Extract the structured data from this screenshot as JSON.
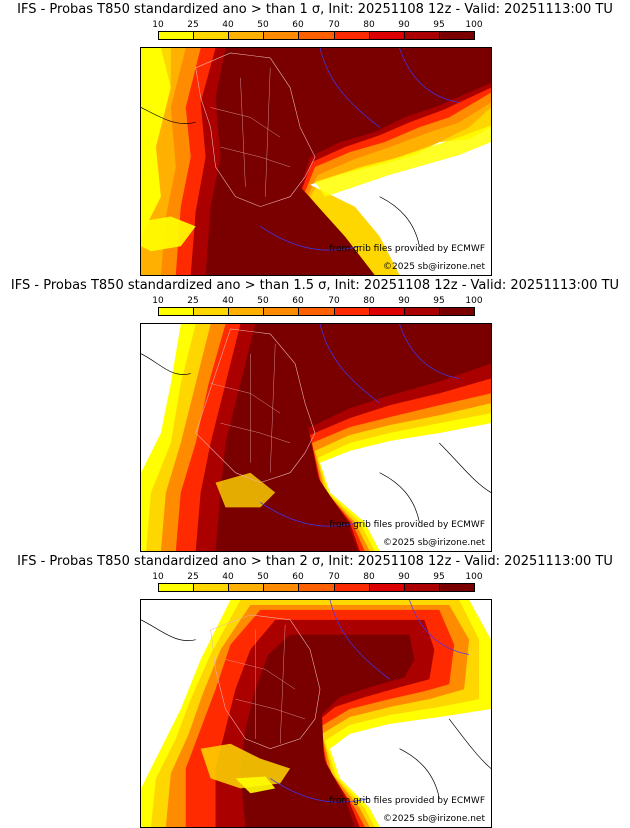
{
  "panels": [
    {
      "title": "IFS - Probas T850  standardized ano > than 1 σ, Init: 20251108 12z - Valid: 20251113:00 TU"
    },
    {
      "title": "IFS - Probas T850  standardized ano > than 1.5 σ, Init: 20251108 12z - Valid: 20251113:00 TU"
    },
    {
      "title": "IFS - Probas T850  standardized ano > than 2 σ, Init: 20251108 12z - Valid: 20251113:00 TU"
    }
  ],
  "colorbar": {
    "levels": [
      "10",
      "25",
      "40",
      "50",
      "60",
      "70",
      "80",
      "90",
      "95",
      "100"
    ],
    "colors": [
      "#ffff00",
      "#ffd700",
      "#ffb000",
      "#ff8c00",
      "#ff6000",
      "#ff2a00",
      "#dd0000",
      "#aa0000",
      "#7a0000"
    ]
  },
  "credits": {
    "source": "from grib files provided by ECMWF",
    "copyright": "©2025 sb@irizone.net"
  }
}
